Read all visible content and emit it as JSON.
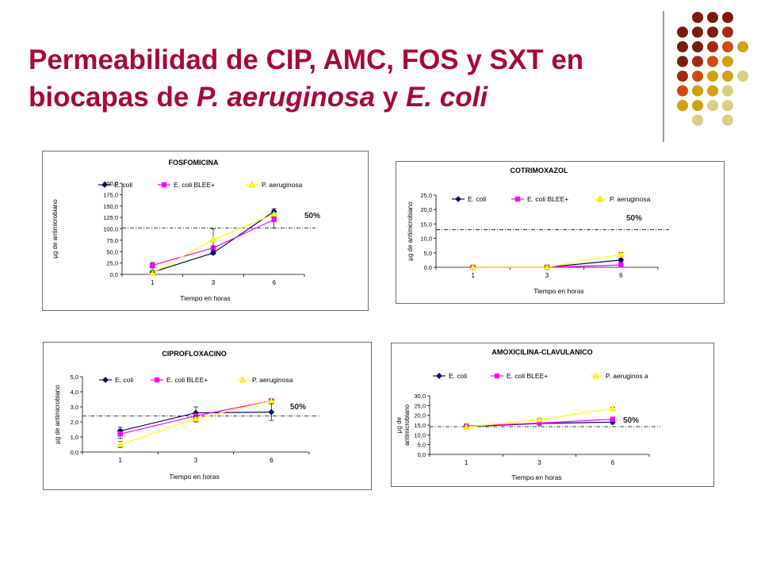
{
  "slide": {
    "title_line1": "Permeabilidad de CIP, AMC, FOS y SXT en",
    "title_line2_pre": "biocapas de ",
    "title_line2_it1": "P. aeruginosa",
    "title_line2_mid": " y ",
    "title_line2_it2": "E. coli",
    "title_color": "#a50a35"
  },
  "decor": {
    "dot_colors": [
      "#7a1a10",
      "#a52a10",
      "#d24a10",
      "#d4a010",
      "#d8ce84"
    ]
  },
  "chart_data": [
    {
      "id": "fos",
      "type": "line",
      "title": "FOSFOMICINA",
      "xlabel": "Tiempo en horas",
      "ylabel": "µg de antimicrobiano",
      "categories": [
        "1",
        "3",
        "6"
      ],
      "y_ticks": [
        "0,0",
        "25,0",
        "50,0",
        "75,0",
        "100,0",
        "125,0",
        "150,0",
        "175,0",
        "200,0"
      ],
      "ylim": [
        0,
        200
      ],
      "threshold": {
        "value": 102,
        "label": "50%"
      },
      "legend": "top",
      "series": [
        {
          "name": "E. coli",
          "color": "#0a0a6e",
          "marker": "diamond",
          "values": [
            5,
            47,
            138
          ],
          "errors": [
            2,
            3,
            6
          ]
        },
        {
          "name": "E. coli BLEE+",
          "color": "#ff00ff",
          "marker": "square",
          "values": [
            20,
            58,
            120
          ],
          "errors": [
            6,
            5,
            18
          ]
        },
        {
          "name": "P. aeruginosa",
          "color": "#ffff00",
          "marker": "triangle",
          "values": [
            3,
            76,
            132
          ],
          "errors": [
            2,
            24,
            6
          ]
        }
      ]
    },
    {
      "id": "sxt",
      "type": "line",
      "title": "COTRIMOXAZOL",
      "xlabel": "Tiempo en horas",
      "ylabel": "µg de antimicrobiano",
      "categories": [
        "1",
        "3",
        "6"
      ],
      "y_ticks": [
        "0,0",
        "5,0",
        "10,0",
        "15,0",
        "20,0",
        "25,0"
      ],
      "ylim": [
        0,
        25
      ],
      "threshold": {
        "value": 13,
        "label": "50%"
      },
      "legend": "top",
      "series": [
        {
          "name": "E. coli",
          "color": "#0a0a6e",
          "marker": "diamond",
          "values": [
            0,
            0,
            2.5
          ],
          "errors": [
            0.2,
            0.2,
            0.6
          ]
        },
        {
          "name": "E. coli BLEE+",
          "color": "#ff00ff",
          "marker": "square",
          "values": [
            0,
            0,
            0.8
          ],
          "errors": [
            0.2,
            0.2,
            0.4
          ]
        },
        {
          "name": "P. aeruginosa",
          "color": "#ffff00",
          "marker": "triangle",
          "values": [
            0,
            0,
            4.5
          ],
          "errors": [
            0.2,
            0.2,
            0.6
          ]
        }
      ]
    },
    {
      "id": "cip",
      "type": "line",
      "title": "CIPROFLOXACINO",
      "xlabel": "Tiempo en horas",
      "ylabel": "µg de antimicrobiano",
      "categories": [
        "1",
        "3",
        "6"
      ],
      "y_ticks": [
        "0,0",
        "1,0",
        "2,0",
        "3,0",
        "4,0",
        "5,0"
      ],
      "ylim": [
        0,
        5
      ],
      "threshold": {
        "value": 2.4,
        "label": "50%"
      },
      "legend": "top",
      "series": [
        {
          "name": "E. coli",
          "color": "#0a0a6e",
          "marker": "diamond",
          "values": [
            1.4,
            2.6,
            2.65
          ],
          "errors": [
            0.25,
            0.4,
            0.55
          ]
        },
        {
          "name": "E. coli BLEE+",
          "color": "#ff00ff",
          "marker": "square",
          "values": [
            1.2,
            2.4,
            3.4
          ],
          "errors": [
            0.3,
            0.2,
            0.1
          ]
        },
        {
          "name": "P. aeruginosa",
          "color": "#ffff00",
          "marker": "triangle",
          "values": [
            0.5,
            2.2,
            3.4
          ],
          "errors": [
            0.2,
            0.2,
            0.1
          ]
        }
      ]
    },
    {
      "id": "amc",
      "type": "line",
      "title": "AMOXICILINA-CLAVULANICO",
      "xlabel": "Tiempo en horas",
      "ylabel_line1": "µg de",
      "ylabel_line2": "antimicrobiano",
      "categories": [
        "1",
        "3",
        "6"
      ],
      "y_ticks": [
        "0,0",
        "5,0",
        "10,0",
        "15,0",
        "20,0",
        "25,0",
        "30,0"
      ],
      "ylim": [
        0,
        30
      ],
      "threshold": {
        "value": 14.2,
        "label": "50%"
      },
      "legend": "top",
      "series": [
        {
          "name": "E. coli",
          "color": "#0a0a6e",
          "marker": "diamond",
          "values": [
            14.2,
            15.8,
            16.5
          ],
          "errors": [
            0.4,
            0.6,
            1
          ]
        },
        {
          "name": "E. coli BLEE+",
          "color": "#ff00ff",
          "marker": "square",
          "values": [
            14.5,
            16,
            18
          ],
          "errors": [
            0.4,
            0.6,
            0.8
          ]
        },
        {
          "name": "P. aeruginos a",
          "color": "#ffff00",
          "marker": "triangle",
          "values": [
            14,
            17.8,
            23.5
          ],
          "errors": [
            0.4,
            0.5,
            0.6
          ]
        }
      ]
    }
  ]
}
